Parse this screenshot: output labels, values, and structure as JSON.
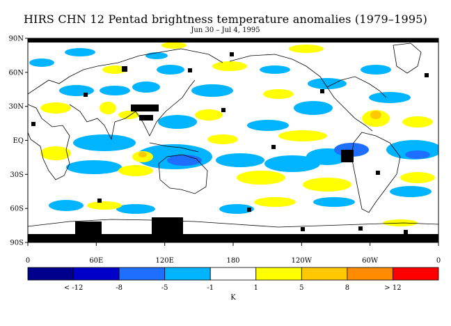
{
  "title": "HIRS CHN 12 Pentad brightness temperature anomalies (1979–1995)",
  "subtitle": "Jun 30 – Jul 4, 1995",
  "lat_labels": [
    "90N",
    "60N",
    "30N",
    "EQ",
    "30S",
    "60S",
    "90S"
  ],
  "lat_values": [
    90,
    60,
    30,
    0,
    -30,
    -60,
    -90
  ],
  "lon_labels": [
    "0",
    "60E",
    "120E",
    "180",
    "120W",
    "60W",
    "0"
  ],
  "lon_values": [
    0,
    60,
    120,
    180,
    240,
    300,
    360
  ],
  "colorbar": {
    "colors": [
      "#00008c",
      "#0000c8",
      "#1e6eff",
      "#00b4ff",
      "#ffffff",
      "#ffff00",
      "#ffc800",
      "#ff8c00",
      "#ff0000"
    ],
    "tick_labels": [
      "< -12",
      "-8",
      "-5",
      "-1",
      "1",
      "5",
      "8",
      "> 12"
    ],
    "unit": "K"
  },
  "missing_data_color": "#000000"
}
